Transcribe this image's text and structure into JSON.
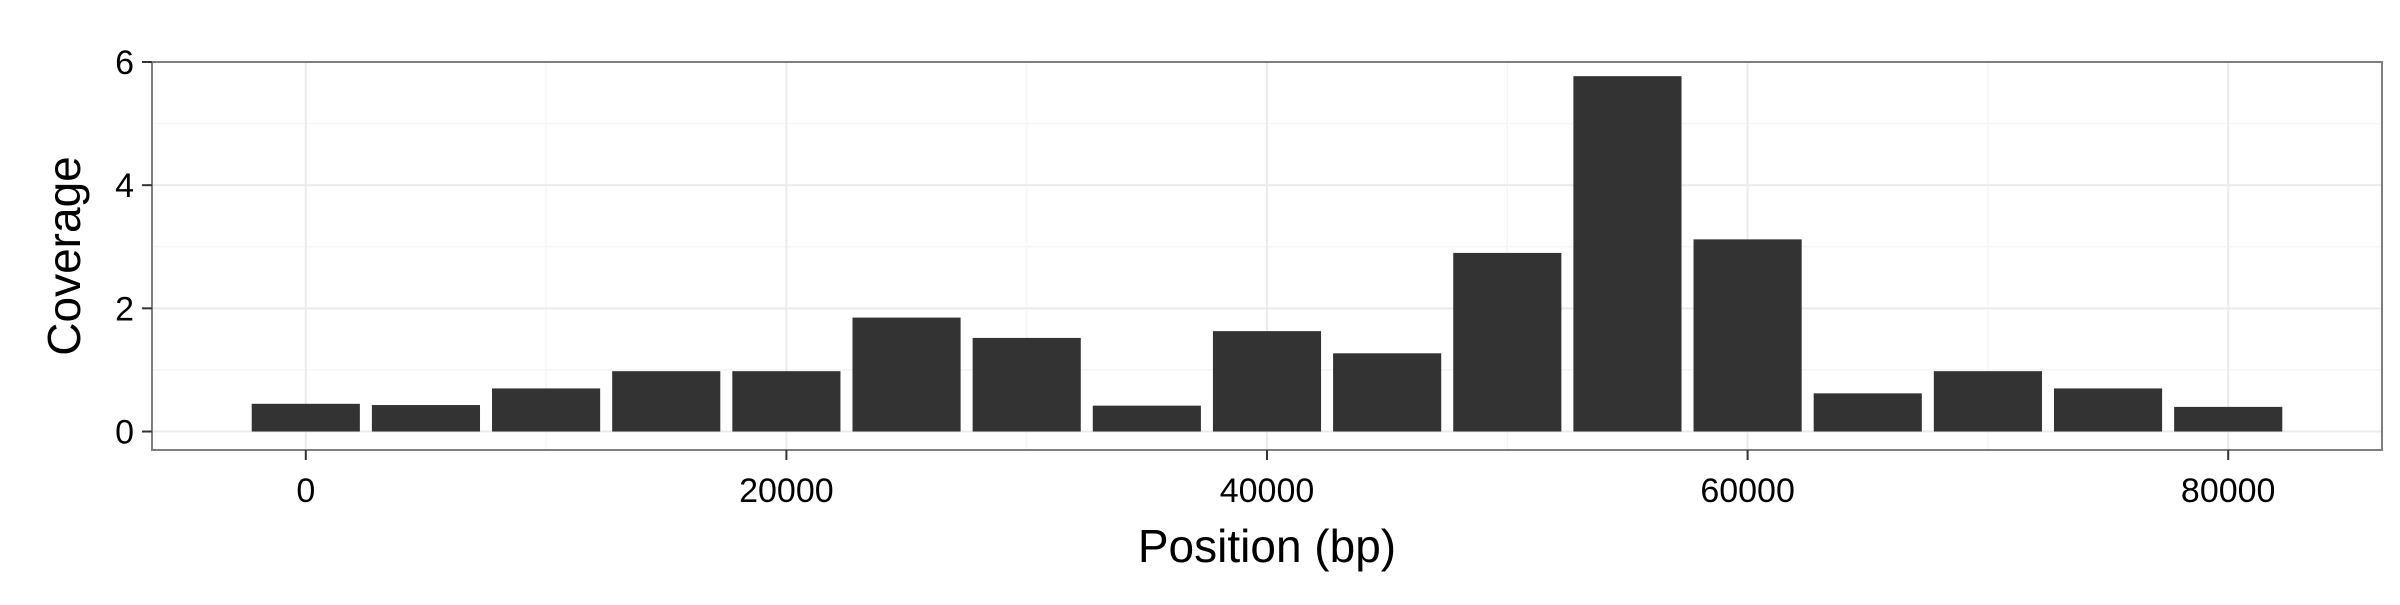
{
  "chart_data": {
    "type": "bar",
    "title": "",
    "xlabel": "Position (bp)",
    "ylabel": "Coverage",
    "x": [
      0,
      5000,
      10000,
      15000,
      20000,
      25000,
      30000,
      35000,
      40000,
      45000,
      50000,
      55000,
      60000,
      65000,
      70000,
      75000,
      80000
    ],
    "values": [
      0.45,
      0.43,
      0.7,
      0.98,
      0.98,
      1.85,
      1.52,
      0.42,
      1.63,
      1.27,
      2.9,
      5.77,
      3.12,
      0.62,
      0.98,
      0.7,
      0.4
    ],
    "bin_width": 5000,
    "xlim": [
      -6400,
      86400
    ],
    "ylim": [
      -0.3,
      6.0
    ],
    "xticks": [
      0,
      20000,
      40000,
      60000,
      80000
    ],
    "xtick_labels": [
      "0",
      "20000",
      "40000",
      "60000",
      "80000"
    ],
    "yticks": [
      0,
      2,
      4,
      6
    ],
    "ytick_labels": [
      "0",
      "2",
      "4",
      "6"
    ],
    "grid": true,
    "legend": "none",
    "colors": {
      "bar": "#333333",
      "panel_border": "#7f7f7f",
      "grid": "#ebebeb"
    }
  }
}
